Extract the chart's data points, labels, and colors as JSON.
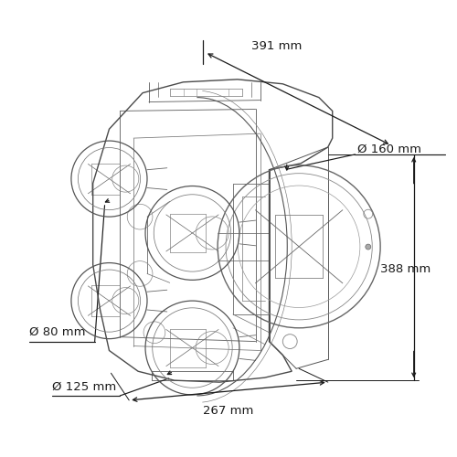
{
  "bg_color": "#ffffff",
  "lc": "#3a3a3a",
  "dc": "#1a1a1a",
  "fig_w": 5.0,
  "fig_h": 5.0,
  "dpi": 100,
  "dim_391_text": "391 mm",
  "dim_160_text": "Ø 160 mm",
  "dim_388_text": "388 mm",
  "dim_80_text": "Ø 80 mm",
  "dim_125_text": "Ø 125 mm",
  "dim_267_text": "267 mm",
  "dim_font": 9.5,
  "body_color": "#4a4a4a",
  "body_lw": 0.85,
  "circle_color": "#555555",
  "arrow_color": "#111111"
}
